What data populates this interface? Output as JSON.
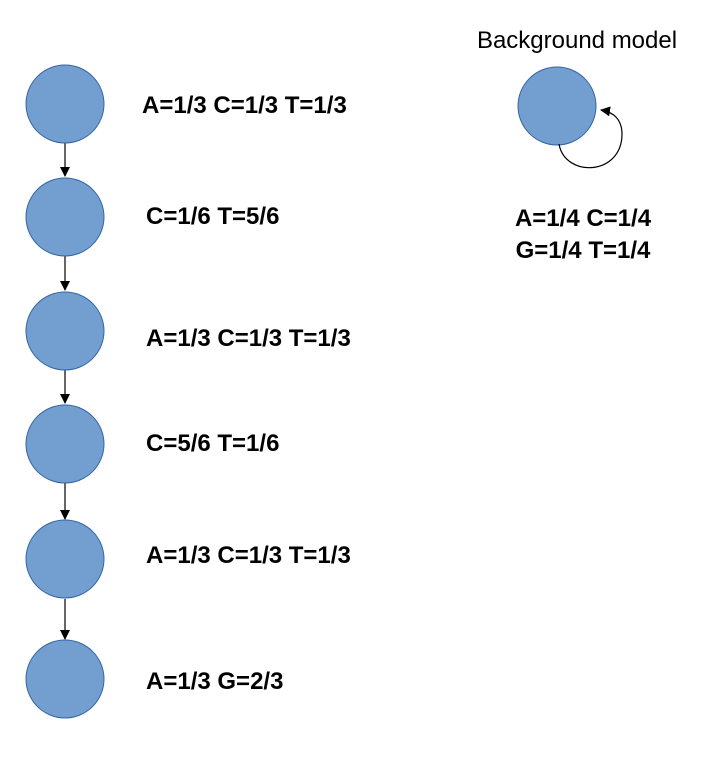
{
  "colors": {
    "node_fill": "#729fcf",
    "node_stroke": "#3465a4",
    "edge": "#000000"
  },
  "chain": {
    "nodes": [
      {
        "label": "A=1/3 C=1/3 T=1/3"
      },
      {
        "label": "C=1/6 T=5/6"
      },
      {
        "label": "A=1/3 C=1/3 T=1/3"
      },
      {
        "label": "C=5/6 T=1/6"
      },
      {
        "label": "A=1/3 C=1/3 T=1/3"
      },
      {
        "label": "A=1/3 G=2/3"
      }
    ]
  },
  "background": {
    "title": "Background model",
    "line1": "A=1/4 C=1/4",
    "line2": "G=1/4 T=1/4"
  }
}
